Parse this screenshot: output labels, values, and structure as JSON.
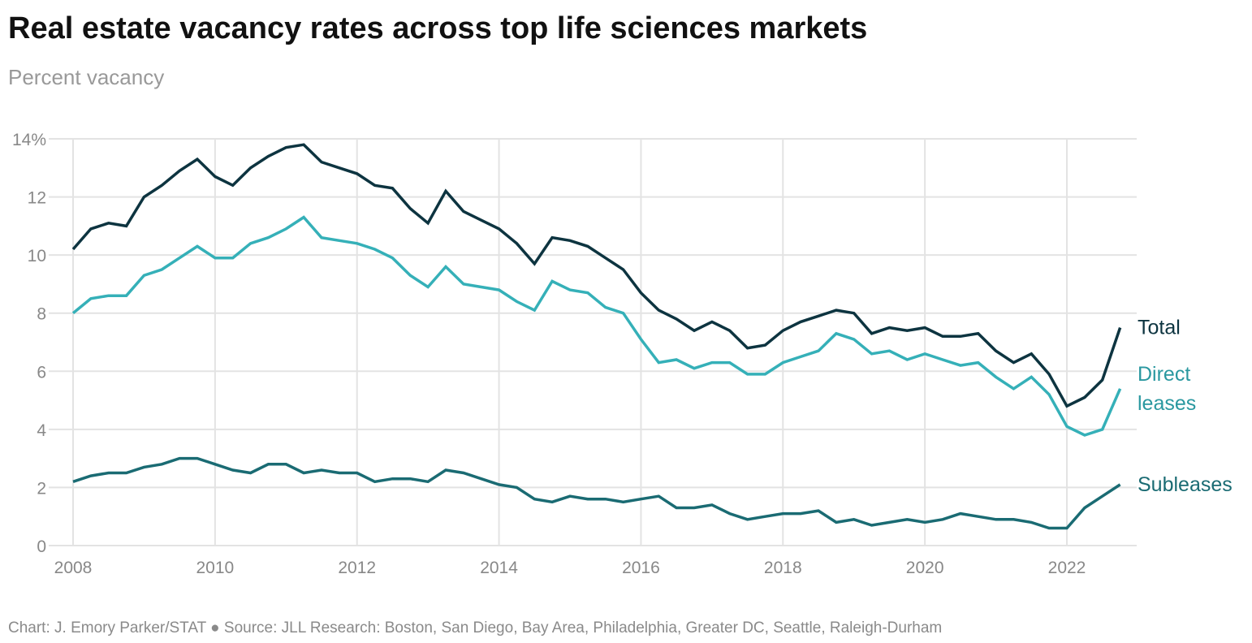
{
  "title": "Real estate vacancy rates across top life sciences markets",
  "subtitle": "Percent vacancy",
  "footer": "Chart: J. Emory Parker/STAT ● Source: JLL Research: Boston, San Diego, Bay Area, Philadelphia, Greater DC, Seattle, Raleigh-Durham",
  "chart_data": {
    "type": "line",
    "xlim": [
      2008,
      2022.75
    ],
    "ylim": [
      0,
      14
    ],
    "grid": true,
    "legend": "direct labels at line ends (right)",
    "x_ticks": [
      2008,
      2010,
      2012,
      2014,
      2016,
      2018,
      2020,
      2022
    ],
    "x_tick_labels": [
      "2008",
      "2010",
      "2012",
      "2014",
      "2016",
      "2018",
      "2020",
      "2022"
    ],
    "y_ticks": [
      0,
      2,
      4,
      6,
      8,
      10,
      12,
      14
    ],
    "y_tick_labels": [
      "0",
      "2",
      "4",
      "6",
      "8",
      "10",
      "12",
      "14%"
    ],
    "x_start": 2008,
    "x_step": 0.25,
    "series": [
      {
        "name": "Total",
        "color": "#0d3440",
        "label_color": "#0d3440",
        "values": [
          10.2,
          10.9,
          11.1,
          11.0,
          12.0,
          12.4,
          12.9,
          13.3,
          12.7,
          12.4,
          13.0,
          13.4,
          13.7,
          13.8,
          13.2,
          13.0,
          12.8,
          12.4,
          12.3,
          11.6,
          11.1,
          12.2,
          11.5,
          11.2,
          10.9,
          10.4,
          9.7,
          10.6,
          10.5,
          10.3,
          9.9,
          9.5,
          8.7,
          8.1,
          7.8,
          7.4,
          7.7,
          7.4,
          6.8,
          6.9,
          7.4,
          7.7,
          7.9,
          8.1,
          8.0,
          7.3,
          7.5,
          7.4,
          7.5,
          7.2,
          7.2,
          7.3,
          6.7,
          6.3,
          6.6,
          5.9,
          4.8,
          5.1,
          5.7,
          7.5
        ]
      },
      {
        "name": "Direct leases",
        "label_lines": [
          "Direct",
          "leases"
        ],
        "color": "#35b0b8",
        "label_color": "#2a98a0",
        "values": [
          8.0,
          8.5,
          8.6,
          8.6,
          9.3,
          9.5,
          9.9,
          10.3,
          9.9,
          9.9,
          10.4,
          10.6,
          10.9,
          11.3,
          10.6,
          10.5,
          10.4,
          10.2,
          9.9,
          9.3,
          8.9,
          9.6,
          9.0,
          8.9,
          8.8,
          8.4,
          8.1,
          9.1,
          8.8,
          8.7,
          8.2,
          8.0,
          7.1,
          6.3,
          6.4,
          6.1,
          6.3,
          6.3,
          5.9,
          5.9,
          6.3,
          6.5,
          6.7,
          7.3,
          7.1,
          6.6,
          6.7,
          6.4,
          6.6,
          6.4,
          6.2,
          6.3,
          5.8,
          5.4,
          5.8,
          5.2,
          4.1,
          3.8,
          4.0,
          5.4
        ]
      },
      {
        "name": "Subleases",
        "color": "#1a6b73",
        "label_color": "#1a6b73",
        "values": [
          2.2,
          2.4,
          2.5,
          2.5,
          2.7,
          2.8,
          3.0,
          3.0,
          2.8,
          2.6,
          2.5,
          2.8,
          2.8,
          2.5,
          2.6,
          2.5,
          2.5,
          2.2,
          2.3,
          2.3,
          2.2,
          2.6,
          2.5,
          2.3,
          2.1,
          2.0,
          1.6,
          1.5,
          1.7,
          1.6,
          1.6,
          1.5,
          1.6,
          1.7,
          1.3,
          1.3,
          1.4,
          1.1,
          0.9,
          1.0,
          1.1,
          1.1,
          1.2,
          0.8,
          0.9,
          0.7,
          0.8,
          0.9,
          0.8,
          0.9,
          1.1,
          1.0,
          0.9,
          0.9,
          0.8,
          0.6,
          0.6,
          1.3,
          1.7,
          2.1
        ]
      }
    ]
  }
}
